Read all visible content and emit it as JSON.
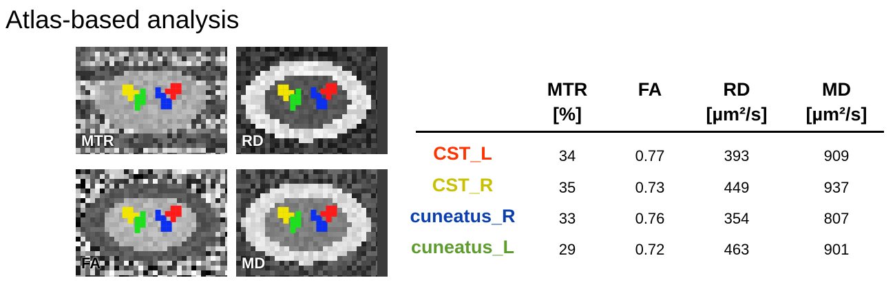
{
  "title": "Atlas-based analysis",
  "panels": [
    {
      "label": "MTR",
      "style": "mtr"
    },
    {
      "label": "RD",
      "style": "rd"
    },
    {
      "label": "FA",
      "style": "fa"
    },
    {
      "label": "MD",
      "style": "md"
    }
  ],
  "table": {
    "headers": [
      {
        "name": "MTR",
        "unit": "[%]"
      },
      {
        "name": "FA",
        "unit": ""
      },
      {
        "name": "RD",
        "unit": "[µm²/s]"
      },
      {
        "name": "MD",
        "unit": "[µm²/s]"
      }
    ],
    "rows": [
      {
        "name": "CST_L",
        "color": "#ff3300",
        "values": [
          "34",
          "0.77",
          "393",
          "909"
        ]
      },
      {
        "name": "CST_R",
        "color": "#c8c000",
        "values": [
          "35",
          "0.73",
          "449",
          "937"
        ]
      },
      {
        "name": "cuneatus_R",
        "color": "#0a3fb0",
        "values": [
          "33",
          "0.76",
          "354",
          "807"
        ]
      },
      {
        "name": "cuneatus_L",
        "color": "#5e9c30",
        "values": [
          "29",
          "0.72",
          "463",
          "901"
        ]
      }
    ]
  },
  "colors": {
    "red": "#ff1a1a",
    "yellow": "#f2e600",
    "blue": "#0a2ff0",
    "green": "#1ee01e"
  }
}
